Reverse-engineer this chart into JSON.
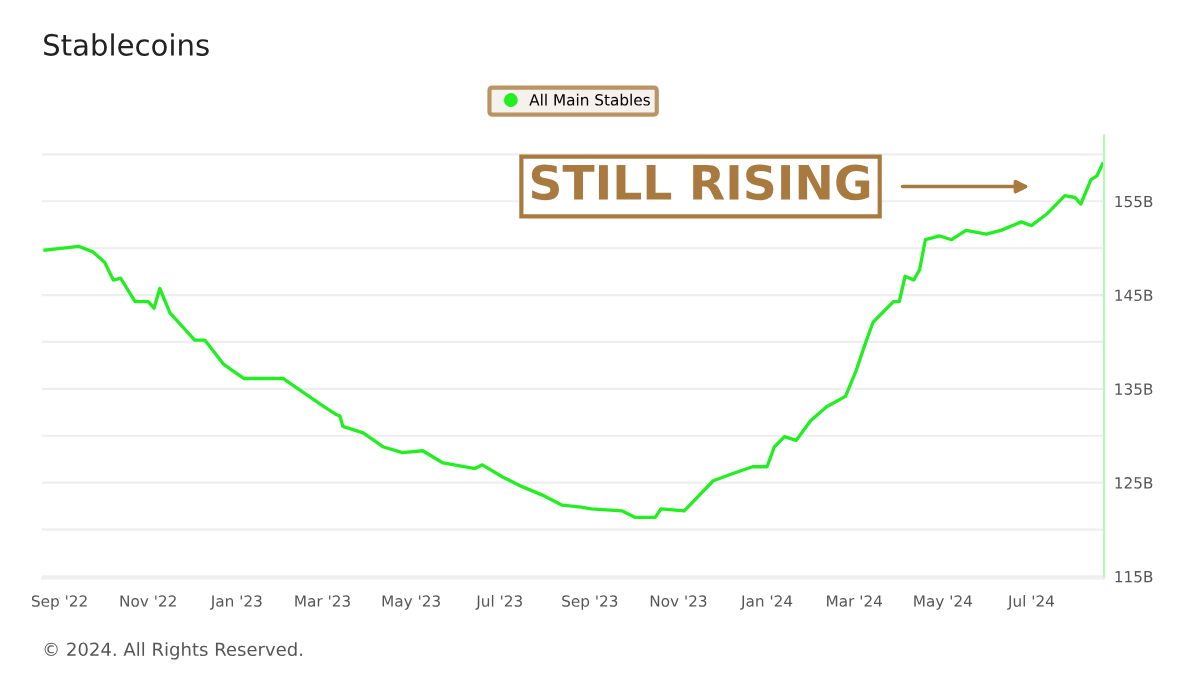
{
  "chart_data": {
    "type": "line",
    "title": "Stablecoins",
    "x": [
      "2022-08-22",
      "2022-09-14",
      "2022-09-24",
      "2022-10-02",
      "2022-10-08",
      "2022-10-13",
      "2022-10-23",
      "2022-11-01",
      "2022-11-05",
      "2022-11-09",
      "2022-11-16",
      "2022-11-23",
      "2022-12-03",
      "2022-12-10",
      "2022-12-23",
      "2023-01-06",
      "2023-01-20",
      "2023-02-02",
      "2023-02-16",
      "2023-03-02",
      "2023-03-10",
      "2023-03-13",
      "2023-03-15",
      "2023-03-29",
      "2023-04-12",
      "2023-04-25",
      "2023-05-09",
      "2023-05-23",
      "2023-06-14",
      "2023-06-19",
      "2023-07-03",
      "2023-07-16",
      "2023-07-30",
      "2023-08-13",
      "2023-08-26",
      "2023-09-02",
      "2023-09-23",
      "2023-10-02",
      "2023-10-16",
      "2023-10-20",
      "2023-11-05",
      "2023-11-25",
      "2023-12-09",
      "2023-12-22",
      "2024-01-01",
      "2024-01-06",
      "2024-01-13",
      "2024-01-21",
      "2024-01-31",
      "2024-02-11",
      "2024-02-24",
      "2024-03-02",
      "2024-03-09",
      "2024-03-14",
      "2024-03-28",
      "2024-04-01",
      "2024-04-05",
      "2024-04-11",
      "2024-04-15",
      "2024-04-19",
      "2024-04-29",
      "2024-05-07",
      "2024-05-17",
      "2024-05-31",
      "2024-06-10",
      "2024-06-24",
      "2024-07-01",
      "2024-07-12",
      "2024-07-24",
      "2024-07-31",
      "2024-08-04",
      "2024-08-11",
      "2024-08-15",
      "2024-08-19"
    ],
    "series": [
      {
        "name": "All Main Stables",
        "color": "#22ee22",
        "values": [
          149.8,
          150.2,
          149.6,
          148.5,
          146.6,
          146.8,
          144.3,
          144.3,
          143.6,
          145.7,
          143.1,
          141.9,
          140.2,
          140.2,
          137.6,
          136.1,
          136.1,
          136.1,
          134.6,
          133.1,
          132.3,
          132.1,
          131.0,
          130.3,
          128.8,
          128.2,
          128.4,
          127.1,
          126.5,
          126.9,
          125.6,
          124.6,
          123.7,
          122.6,
          122.4,
          122.2,
          122.0,
          121.3,
          121.3,
          122.2,
          122.0,
          125.2,
          126.0,
          126.7,
          126.7,
          128.8,
          129.9,
          129.5,
          131.6,
          133.1,
          134.2,
          136.8,
          140.0,
          142.1,
          144.3,
          144.3,
          147.0,
          146.6,
          147.7,
          150.9,
          151.3,
          150.9,
          151.9,
          151.5,
          151.9,
          152.8,
          152.4,
          153.7,
          155.6,
          155.4,
          154.7,
          157.3,
          157.7,
          159.0
        ]
      }
    ],
    "xlim": [
      "2022-08-20",
      "2024-08-20"
    ],
    "xticks": [
      {
        "value": "2022-09-01",
        "label": "Sep '22"
      },
      {
        "value": "2022-11-01",
        "label": "Nov '22"
      },
      {
        "value": "2023-01-01",
        "label": "Jan '23"
      },
      {
        "value": "2023-03-01",
        "label": "Mar '23"
      },
      {
        "value": "2023-05-01",
        "label": "May '23"
      },
      {
        "value": "2023-07-01",
        "label": "Jul '23"
      },
      {
        "value": "2023-09-01",
        "label": "Sep '23"
      },
      {
        "value": "2023-11-01",
        "label": "Nov '23"
      },
      {
        "value": "2024-01-01",
        "label": "Jan '24"
      },
      {
        "value": "2024-03-01",
        "label": "Mar '24"
      },
      {
        "value": "2024-05-01",
        "label": "May '24"
      },
      {
        "value": "2024-07-01",
        "label": "Jul '24"
      }
    ],
    "ylim": [
      114.8,
      162
    ],
    "yticks": [
      {
        "value": 115,
        "label": "115B"
      },
      {
        "value": 120,
        "label": null
      },
      {
        "value": 125,
        "label": "125B"
      },
      {
        "value": 130,
        "label": null
      },
      {
        "value": 135,
        "label": "135B"
      },
      {
        "value": 140,
        "label": null
      },
      {
        "value": 145,
        "label": "145B"
      },
      {
        "value": 150,
        "label": null
      },
      {
        "value": 155,
        "label": "155B"
      },
      {
        "value": 160,
        "label": null
      }
    ],
    "grid": "y",
    "legend": "top",
    "marker": "none",
    "line_style": "solid",
    "annotations": [
      "STILL RISING",
      "© 2024. All Rights Reserved."
    ]
  }
}
